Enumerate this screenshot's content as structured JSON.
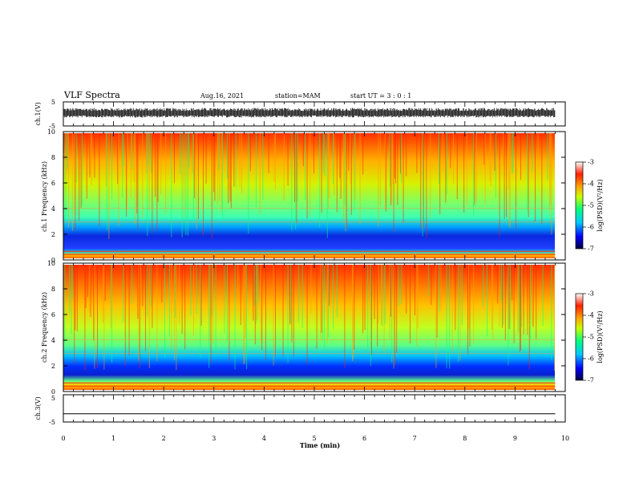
{
  "header": {
    "title": "VLF Spectra",
    "date": "Aug.16, 2021",
    "station": "station=MAM",
    "start": "start UT =  3 : 0 : 1"
  },
  "chart_data": {
    "type": "heatmap",
    "xlabel": "Time (min)",
    "xlim": [
      0,
      10
    ],
    "xticks": [
      "0",
      "1",
      "2",
      "3",
      "4",
      "5",
      "6",
      "7",
      "8",
      "9",
      "10"
    ],
    "panels": [
      {
        "id": "ch1-wave",
        "type": "line",
        "ylabel": "ch.1(V)",
        "ylim": [
          -5,
          5
        ],
        "yticks": [
          "5",
          "-5"
        ],
        "description_values": {
          "amplitude_range": [
            -1.5,
            2.5
          ]
        }
      },
      {
        "id": "ch1-spec",
        "type": "heatmap",
        "ylabel": "ch.1 Frequency (kHz)",
        "ylim": [
          0,
          10
        ],
        "yticks": [
          "0",
          "2",
          "4",
          "6",
          "8",
          "10"
        ],
        "colorbar": {
          "label": "log(PSD)(V²/Hz)",
          "range": [
            -7,
            -3
          ],
          "ticks": [
            "-3",
            "-4",
            "-5",
            "-6",
            "-7"
          ]
        }
      },
      {
        "id": "ch2-spec",
        "type": "heatmap",
        "ylabel": "ch.2 Frequency (kHz)",
        "ylim": [
          0,
          10
        ],
        "yticks": [
          "0",
          "2",
          "4",
          "6",
          "8",
          "10"
        ],
        "colorbar": {
          "label": "log(PSD)(V²/Hz)",
          "range": [
            -7,
            -3
          ],
          "ticks": [
            "-3",
            "-4",
            "-5",
            "-6",
            "-7"
          ]
        }
      },
      {
        "id": "ch3-wave",
        "type": "line",
        "ylabel": "ch.3(V)",
        "ylim": [
          -5,
          5
        ],
        "yticks": [
          "5",
          "-5"
        ],
        "description_values": {
          "constant": -2
        }
      }
    ],
    "data_end_min": 9.8,
    "grid": false
  },
  "colors": {
    "colormap": [
      "#000040",
      "#0000ff",
      "#00c8ff",
      "#00ff80",
      "#c8ff00",
      "#ffa000",
      "#ff2000",
      "#ffffff"
    ]
  }
}
